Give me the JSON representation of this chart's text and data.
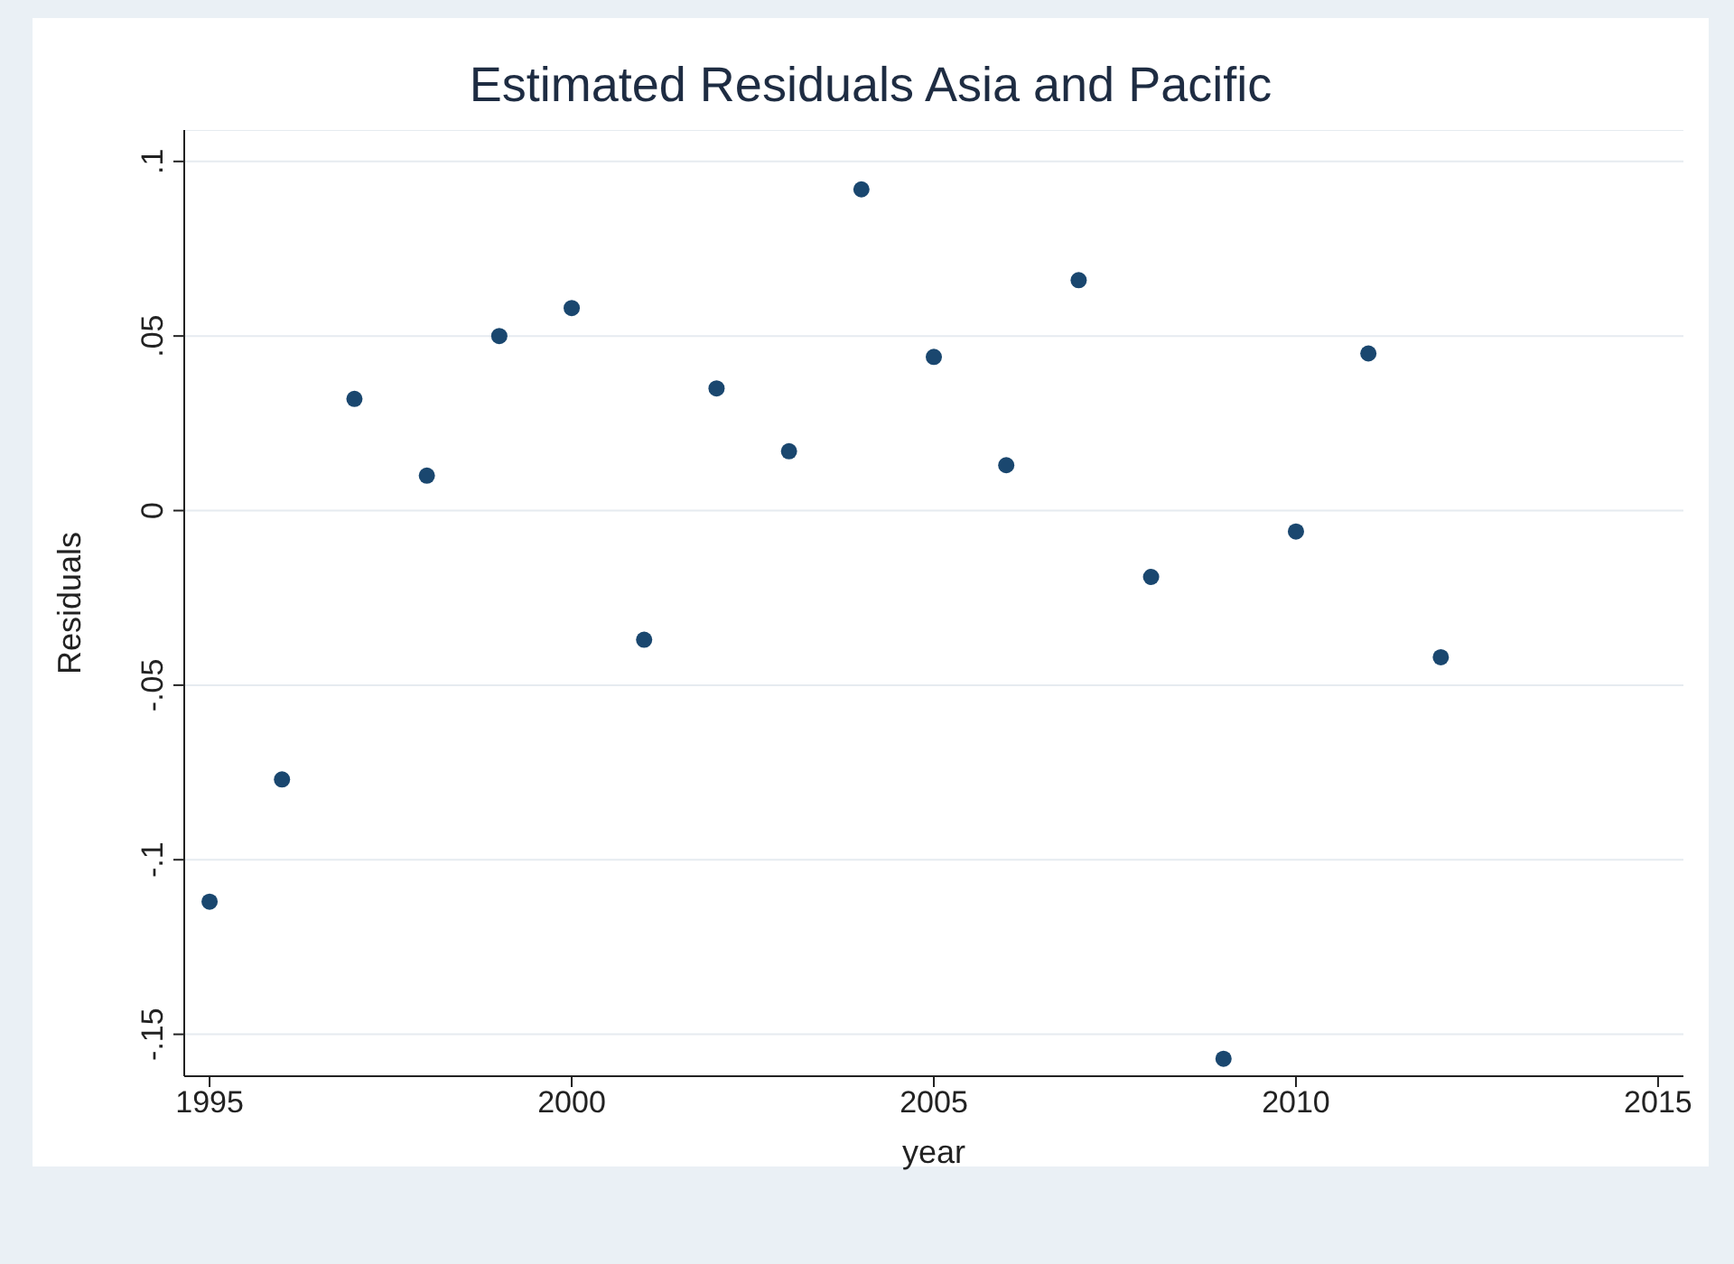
{
  "chart_data": {
    "type": "scatter",
    "title": "Estimated Residuals Asia and Pacific",
    "xlabel": "year",
    "ylabel": "Residuals",
    "x": [
      1995,
      1996,
      1997,
      1998,
      1999,
      2000,
      2001,
      2002,
      2003,
      2004,
      2005,
      2006,
      2007,
      2008,
      2009,
      2010,
      2011,
      2012
    ],
    "series": [
      {
        "color": "#1a476f",
        "values": [
          -0.112,
          -0.077,
          0.032,
          0.01,
          0.05,
          0.058,
          -0.037,
          0.035,
          0.017,
          0.092,
          0.044,
          0.013,
          0.066,
          -0.019,
          -0.157,
          -0.006,
          0.045,
          -0.042
        ]
      }
    ],
    "xlim": [
      1994.65,
      2015.35
    ],
    "xticks": [
      1995,
      2000,
      2005,
      2010,
      2015
    ],
    "ylim": [
      -0.162,
      0.109
    ],
    "yticks": [
      {
        "value": -0.15,
        "label": "-.15"
      },
      {
        "value": -0.1,
        "label": "-.1"
      },
      {
        "value": -0.05,
        "label": "-.05"
      },
      {
        "value": 0,
        "label": "0"
      },
      {
        "value": 0.05,
        "label": ".05"
      },
      {
        "value": 0.1,
        "label": ".1"
      }
    ],
    "grid": "y",
    "marker": "circle",
    "legend": false
  }
}
